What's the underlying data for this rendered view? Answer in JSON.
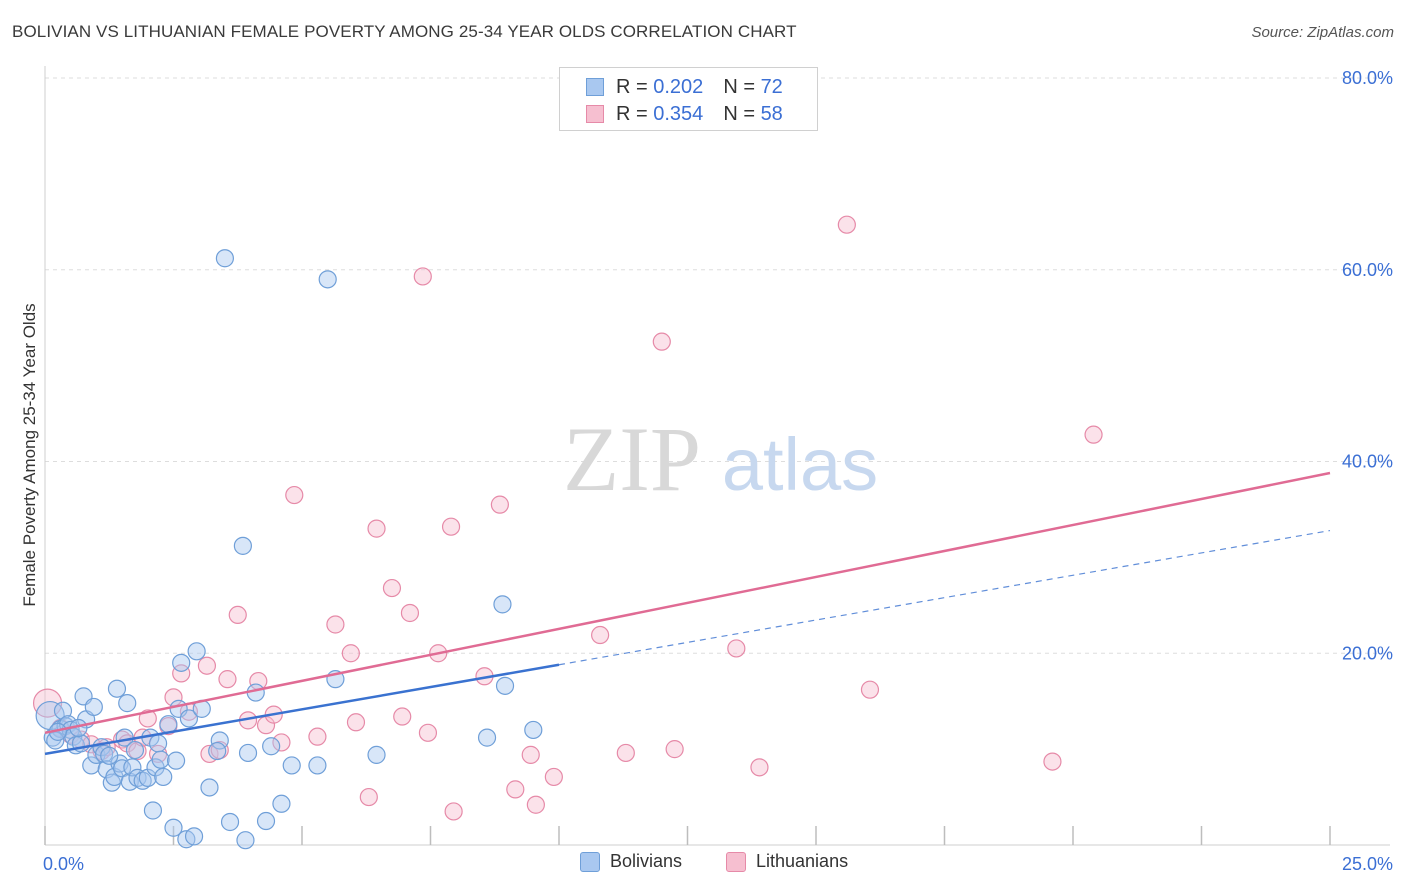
{
  "title": "BOLIVIAN VS LITHUANIAN FEMALE POVERTY AMONG 25-34 YEAR OLDS CORRELATION CHART",
  "source": "Source: ZipAtlas.com",
  "watermark": {
    "zip": "ZIP",
    "atlas": "atlas"
  },
  "colors": {
    "bolivian_fill": "#a9c8f0",
    "bolivian_stroke": "#6f9fd8",
    "bolivian_line": "#3a72d0",
    "lithuanian_fill": "#f6bfd0",
    "lithuanian_stroke": "#e68aa8",
    "lithuanian_line": "#e06b94",
    "axis_label": "#3b6fd4",
    "grid": "#dddddd"
  },
  "legend_top": [
    {
      "r_label": "R =",
      "r": "0.202",
      "n_label": "N =",
      "n": "72"
    },
    {
      "r_label": "R =",
      "r": "0.354",
      "n_label": "N =",
      "n": "58"
    }
  ],
  "legend_bottom": [
    "Bolivians",
    "Lithuanians"
  ],
  "chart_data": {
    "type": "scatter",
    "title": "BOLIVIAN VS LITHUANIAN FEMALE POVERTY AMONG 25-34 YEAR OLDS CORRELATION CHART",
    "xlabel": "",
    "ylabel": "Female Poverty Among 25-34 Year Olds",
    "xlim": [
      0,
      25
    ],
    "ylim": [
      0,
      80
    ],
    "x_tick_labels": [
      "0.0%",
      "25.0%"
    ],
    "y_ticks": [
      20,
      40,
      60,
      80
    ],
    "y_tick_labels": [
      "20.0%",
      "40.0%",
      "60.0%",
      "80.0%"
    ],
    "grid": true,
    "series": [
      {
        "name": "Bolivians",
        "trend": {
          "x": [
            0,
            10
          ],
          "y": [
            9.5,
            18.8
          ],
          "dashed_to": [
            25,
            32.8
          ]
        },
        "points": [
          [
            0.1,
            13.5
          ],
          [
            0.15,
            11.2
          ],
          [
            0.3,
            12.1
          ],
          [
            0.35,
            14.0
          ],
          [
            0.4,
            12.4
          ],
          [
            0.45,
            12.6
          ],
          [
            0.5,
            12.0
          ],
          [
            0.55,
            11.3
          ],
          [
            0.6,
            10.4
          ],
          [
            0.7,
            10.6
          ],
          [
            0.8,
            13.1
          ],
          [
            0.75,
            15.5
          ],
          [
            0.9,
            8.3
          ],
          [
            0.95,
            14.4
          ],
          [
            1.0,
            9.4
          ],
          [
            1.1,
            10.2
          ],
          [
            1.15,
            9.5
          ],
          [
            1.2,
            7.9
          ],
          [
            1.3,
            6.5
          ],
          [
            1.35,
            7.1
          ],
          [
            1.4,
            16.3
          ],
          [
            1.45,
            8.5
          ],
          [
            1.5,
            8.0
          ],
          [
            1.55,
            11.2
          ],
          [
            1.6,
            14.8
          ],
          [
            1.65,
            6.6
          ],
          [
            1.7,
            8.1
          ],
          [
            1.8,
            7.0
          ],
          [
            1.9,
            6.7
          ],
          [
            2.0,
            7.0
          ],
          [
            2.05,
            11.2
          ],
          [
            2.1,
            3.6
          ],
          [
            2.15,
            8.1
          ],
          [
            2.2,
            10.6
          ],
          [
            2.25,
            8.9
          ],
          [
            2.3,
            7.1
          ],
          [
            2.4,
            12.6
          ],
          [
            2.5,
            1.8
          ],
          [
            2.55,
            8.8
          ],
          [
            2.6,
            14.2
          ],
          [
            2.65,
            19.0
          ],
          [
            2.75,
            0.6
          ],
          [
            2.8,
            13.2
          ],
          [
            2.9,
            0.9
          ],
          [
            2.95,
            20.2
          ],
          [
            3.05,
            14.2
          ],
          [
            3.2,
            6.0
          ],
          [
            3.4,
            10.9
          ],
          [
            3.35,
            9.8
          ],
          [
            3.5,
            61.2
          ],
          [
            3.6,
            2.4
          ],
          [
            3.85,
            31.2
          ],
          [
            3.9,
            0.5
          ],
          [
            3.95,
            9.6
          ],
          [
            4.1,
            15.9
          ],
          [
            4.3,
            2.5
          ],
          [
            4.4,
            10.3
          ],
          [
            4.6,
            4.3
          ],
          [
            4.8,
            8.3
          ],
          [
            5.3,
            8.3
          ],
          [
            5.5,
            59.0
          ],
          [
            5.65,
            17.3
          ],
          [
            6.45,
            9.4
          ],
          [
            8.6,
            11.2
          ],
          [
            8.9,
            25.1
          ],
          [
            8.95,
            16.6
          ],
          [
            9.5,
            12.0
          ],
          [
            0.2,
            10.9
          ],
          [
            0.25,
            11.8
          ],
          [
            0.65,
            12.2
          ],
          [
            1.25,
            9.3
          ],
          [
            1.75,
            9.9
          ]
        ]
      },
      {
        "name": "Lithuanians",
        "trend": {
          "x": [
            0,
            25
          ],
          "y": [
            11.7,
            38.8
          ]
        },
        "points": [
          [
            0.05,
            14.8
          ],
          [
            0.3,
            12.2
          ],
          [
            0.5,
            11.5
          ],
          [
            0.7,
            11.0
          ],
          [
            0.9,
            10.5
          ],
          [
            1.1,
            9.8
          ],
          [
            1.2,
            10.2
          ],
          [
            1.5,
            11.0
          ],
          [
            1.6,
            10.6
          ],
          [
            1.8,
            9.8
          ],
          [
            1.9,
            11.2
          ],
          [
            2.0,
            13.2
          ],
          [
            2.2,
            9.5
          ],
          [
            2.4,
            12.4
          ],
          [
            2.5,
            15.4
          ],
          [
            2.65,
            17.9
          ],
          [
            2.8,
            13.9
          ],
          [
            3.15,
            18.7
          ],
          [
            3.2,
            9.5
          ],
          [
            3.4,
            9.9
          ],
          [
            3.55,
            17.3
          ],
          [
            3.75,
            24.0
          ],
          [
            3.95,
            13.0
          ],
          [
            4.15,
            17.1
          ],
          [
            4.3,
            12.5
          ],
          [
            4.45,
            13.6
          ],
          [
            4.6,
            10.7
          ],
          [
            4.85,
            36.5
          ],
          [
            5.3,
            11.3
          ],
          [
            5.65,
            23.0
          ],
          [
            5.95,
            20.0
          ],
          [
            6.05,
            12.8
          ],
          [
            6.3,
            5.0
          ],
          [
            6.45,
            33.0
          ],
          [
            6.75,
            26.8
          ],
          [
            6.95,
            13.4
          ],
          [
            7.1,
            24.2
          ],
          [
            7.35,
            59.3
          ],
          [
            7.45,
            11.7
          ],
          [
            7.65,
            20.0
          ],
          [
            7.95,
            3.5
          ],
          [
            7.9,
            33.2
          ],
          [
            8.55,
            17.6
          ],
          [
            8.85,
            35.5
          ],
          [
            9.15,
            5.8
          ],
          [
            9.45,
            9.4
          ],
          [
            9.55,
            4.2
          ],
          [
            9.9,
            7.1
          ],
          [
            10.8,
            21.9
          ],
          [
            11.3,
            9.6
          ],
          [
            12.0,
            52.5
          ],
          [
            12.25,
            10.0
          ],
          [
            13.45,
            20.5
          ],
          [
            13.9,
            8.1
          ],
          [
            15.6,
            64.7
          ],
          [
            16.05,
            16.2
          ],
          [
            19.6,
            8.7
          ],
          [
            20.4,
            42.8
          ]
        ]
      }
    ]
  }
}
